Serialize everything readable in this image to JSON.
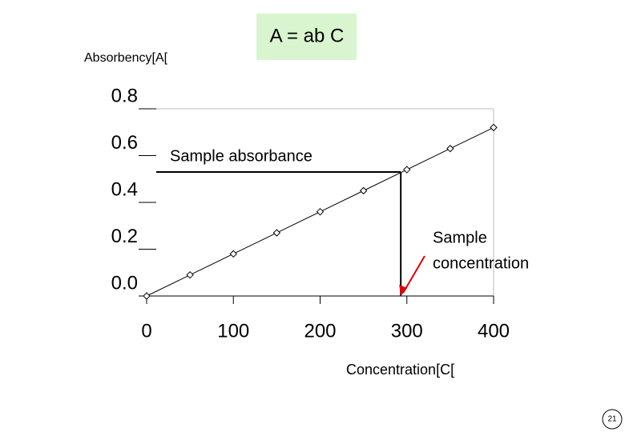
{
  "chart_data": {
    "type": "line",
    "title": "A = ab C",
    "y_label": "Absorbency[A[",
    "x_label": "Concentration[C[",
    "x": [
      0,
      50,
      100,
      150,
      200,
      250,
      300,
      350,
      400
    ],
    "series": [
      {
        "values": [
          0,
          0.09,
          0.18,
          0.27,
          0.36,
          0.45,
          0.54,
          0.63,
          0.72
        ],
        "color": "#000000"
      }
    ],
    "xlim": [
      0,
      400
    ],
    "xticks": [
      0,
      100,
      200,
      300,
      400
    ],
    "ylim": [
      0,
      0.8
    ],
    "yticks": [
      {
        "value": 0,
        "label": "0.0"
      },
      {
        "value": 0.2,
        "label": "0.2"
      },
      {
        "value": 0.4,
        "label": "0.4"
      },
      {
        "value": 0.6,
        "label": "0.6"
      },
      {
        "value": 0.8,
        "label": "0.8"
      }
    ],
    "sample": {
      "x": 293,
      "y": 0.53,
      "absorbance_label": "Sample absorbance",
      "concentration_label": [
        "Sample",
        "concentration"
      ]
    },
    "page_number": "21"
  }
}
